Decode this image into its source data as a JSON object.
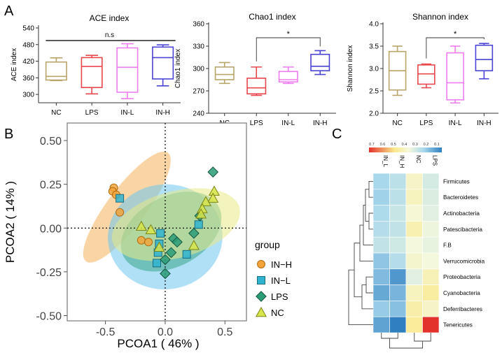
{
  "panel_letters": {
    "a": "A",
    "b": "B",
    "c": "C"
  },
  "chart_data": [
    {
      "type": "box",
      "title": "ACE index",
      "ylabel": "ACE index",
      "categories": [
        "NC",
        "LPS",
        "IN-L",
        "IN-H"
      ],
      "colors": [
        "#b9a46a",
        "#e8474d",
        "#ee7eef",
        "#4b44d6"
      ],
      "ylim": [
        270,
        545
      ],
      "yticks": [
        300,
        360,
        420,
        480,
        540
      ],
      "boxes": [
        {
          "min": 350,
          "q1": 352,
          "median": 365,
          "q3": 417,
          "max": 432
        },
        {
          "min": 302,
          "q1": 325,
          "median": 401,
          "q3": 433,
          "max": 441
        },
        {
          "min": 285,
          "q1": 308,
          "median": 398,
          "q3": 468,
          "max": 483
        },
        {
          "min": 331,
          "q1": 356,
          "median": 433,
          "q3": 471,
          "max": 479
        }
      ],
      "annotation": {
        "label": "n.s",
        "from": 0,
        "to": 3,
        "style": "line"
      }
    },
    {
      "type": "box",
      "title": "Chao1 index",
      "ylabel": "Chao1 index",
      "categories": [
        "NC",
        "LPS",
        "IN-L",
        "IN-H"
      ],
      "colors": [
        "#b9a46a",
        "#e8474d",
        "#ee7eef",
        "#4b44d6"
      ],
      "ylim": [
        240,
        360
      ],
      "yticks": [
        240,
        270,
        300,
        330,
        360
      ],
      "boxes": [
        {
          "min": 280,
          "q1": 285,
          "median": 292,
          "q3": 302,
          "max": 308
        },
        {
          "min": 264,
          "q1": 266,
          "median": 274,
          "q3": 287,
          "max": 302
        },
        {
          "min": 280,
          "q1": 282,
          "median": 285,
          "q3": 296,
          "max": 302
        },
        {
          "min": 292,
          "q1": 297,
          "median": 303,
          "q3": 319,
          "max": 324
        }
      ],
      "annotation": {
        "label": "*",
        "from": 1,
        "to": 3,
        "style": "bracket"
      }
    },
    {
      "type": "box",
      "title": "Shannon index",
      "ylabel": "Shannon index",
      "categories": [
        "NC",
        "LPS",
        "IN-L",
        "IN-H"
      ],
      "colors": [
        "#b9a46a",
        "#e8474d",
        "#ee7eef",
        "#4b44d6"
      ],
      "ylim": [
        2.0,
        4.0
      ],
      "yticks": [
        2.0,
        2.5,
        3.0,
        3.5,
        4.0
      ],
      "boxes": [
        {
          "min": 2.4,
          "q1": 2.52,
          "median": 2.95,
          "q3": 3.38,
          "max": 3.5
        },
        {
          "min": 2.57,
          "q1": 2.65,
          "median": 2.88,
          "q3": 3.08,
          "max": 3.1
        },
        {
          "min": 2.23,
          "q1": 2.3,
          "median": 2.68,
          "q3": 3.35,
          "max": 3.5
        },
        {
          "min": 2.77,
          "q1": 2.95,
          "median": 3.2,
          "q3": 3.52,
          "max": 3.56
        }
      ],
      "annotation": {
        "label": "*",
        "from": 1,
        "to": 3,
        "style": "bracket"
      }
    },
    {
      "type": "scatter",
      "xlabel": "PCOA1 ( 46% )",
      "ylabel": "PCOA2 ( 14% )",
      "xlim": [
        -0.82,
        0.68
      ],
      "ylim": [
        -0.53,
        0.6
      ],
      "xticks": [
        -0.5,
        0.0,
        0.5
      ],
      "xtick_labels": [
        "-0.5",
        "0.0",
        "0.5"
      ],
      "yticks": [
        -0.5,
        -0.25,
        0.0,
        0.25,
        0.5
      ],
      "ytick_labels": [
        "-0.50",
        "-0.25",
        "0.00",
        "0.25",
        "0.50"
      ],
      "legend_title": "group",
      "legend_position": "right",
      "series": [
        {
          "name": "IN−H",
          "marker": "circle",
          "color": "#f2a33a",
          "edge": "#b46a0e",
          "ellipse": {
            "cx": -0.32,
            "cy": 0.12,
            "rx": 0.57,
            "ry": 0.11,
            "angle": -53,
            "color": "#f4b25c"
          },
          "points": [
            [
              -0.43,
              0.23
            ],
            [
              -0.44,
              0.21
            ],
            [
              -0.41,
              0.19
            ],
            [
              -0.38,
              0.09
            ],
            [
              -0.2,
              -0.07
            ],
            [
              -0.14,
              -0.08
            ]
          ]
        },
        {
          "name": "IN−L",
          "marker": "square",
          "color": "#2fb3cf",
          "edge": "#1a6c80",
          "ellipse": {
            "cx": 0.0,
            "cy": -0.05,
            "rx": 0.48,
            "ry": 0.3,
            "angle": -5,
            "color": "#6ec6ef"
          },
          "points": [
            [
              -0.38,
              0.17
            ],
            [
              -0.04,
              -0.03
            ],
            [
              -0.05,
              -0.09
            ],
            [
              -0.06,
              -0.14
            ],
            [
              -0.07,
              -0.2
            ],
            [
              0.28,
              0.02
            ],
            [
              0.18,
              -0.15
            ]
          ]
        },
        {
          "name": "LPS",
          "marker": "diamond",
          "color": "#2a9c78",
          "edge": "#15573f",
          "ellipse": {
            "cx": 0.05,
            "cy": -0.02,
            "rx": 0.45,
            "ry": 0.2,
            "angle": -28,
            "color": "#3aa68b"
          },
          "points": [
            [
              0.4,
              0.32
            ],
            [
              0.29,
              0.07
            ],
            [
              0.07,
              -0.06
            ],
            [
              0.1,
              -0.08
            ],
            [
              0.05,
              -0.14
            ],
            [
              0.0,
              -0.18
            ],
            [
              0.0,
              -0.26
            ],
            [
              0.24,
              -0.03
            ]
          ]
        },
        {
          "name": "NC",
          "marker": "triangle",
          "color": "#d8e54a",
          "edge": "#7b8416",
          "ellipse": {
            "cx": 0.09,
            "cy": 0.02,
            "rx": 0.55,
            "ry": 0.19,
            "angle": -15,
            "color": "#e8ea86"
          },
          "points": [
            [
              0.41,
              0.21
            ],
            [
              0.4,
              0.17
            ],
            [
              0.34,
              0.15
            ],
            [
              0.31,
              0.11
            ],
            [
              0.3,
              0.08
            ],
            [
              -0.2,
              0.01
            ],
            [
              -0.12,
              -0.01
            ],
            [
              -0.05,
              -0.11
            ],
            [
              0.24,
              -0.1
            ]
          ]
        }
      ]
    },
    {
      "type": "heatmap",
      "columns": [
        "IN_L",
        "IN_H",
        "NC",
        "LPS"
      ],
      "rows": [
        "Firmicutes",
        "Bacteroidetes",
        "Actinobacteria",
        "Patescibacteria",
        "F.B",
        "Verrucomicrobia",
        "Proteobacteria",
        "Cyanobacteria",
        "Deferribacteres",
        "Tenericutes"
      ],
      "colorbar_ticks": [
        "0.7",
        "0.6",
        "0.5",
        "0.4",
        "0.3",
        "0.2",
        "0.1"
      ],
      "values": [
        [
          0.25,
          0.28,
          0.4,
          0.32
        ],
        [
          0.24,
          0.28,
          0.41,
          0.33
        ],
        [
          0.26,
          0.3,
          0.38,
          0.34
        ],
        [
          0.27,
          0.29,
          0.43,
          0.36
        ],
        [
          0.29,
          0.31,
          0.37,
          0.35
        ],
        [
          0.22,
          0.27,
          0.39,
          0.37
        ],
        [
          0.2,
          0.14,
          0.34,
          0.42
        ],
        [
          0.17,
          0.19,
          0.41,
          0.45
        ],
        [
          0.23,
          0.21,
          0.44,
          0.4
        ],
        [
          0.16,
          0.1,
          0.46,
          0.72
        ]
      ]
    }
  ]
}
